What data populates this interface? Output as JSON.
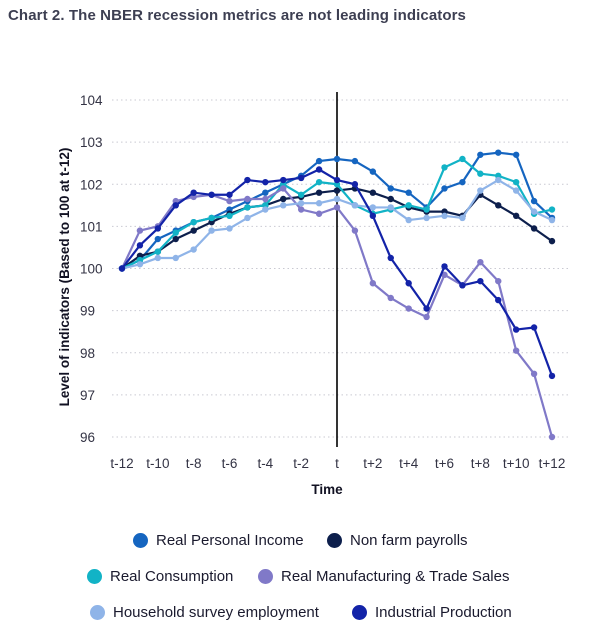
{
  "title": "Chart 2. The NBER recession metrics are not leading indicators",
  "chart_data": {
    "type": "line",
    "xlabel": "Time",
    "ylabel": "Level of indicators (Based to 100 at t-12)",
    "x": [
      -12,
      -11,
      -10,
      -9,
      -8,
      -7,
      -6,
      -5,
      -4,
      -3,
      -2,
      -1,
      0,
      1,
      2,
      3,
      4,
      5,
      6,
      7,
      8,
      9,
      10,
      11,
      12
    ],
    "x_tick_labels": [
      "t-12",
      "t-10",
      "t-8",
      "t-6",
      "t-4",
      "t-2",
      "t",
      "t+2",
      "t+4",
      "t+6",
      "t+8",
      "t+10",
      "t+12"
    ],
    "y_tick_labels": [
      "104",
      "103",
      "102",
      "101",
      "100",
      "99",
      "98",
      "97",
      "96"
    ],
    "ylim": [
      96,
      104
    ],
    "xlim": [
      -12,
      12
    ],
    "grid": "horizontal dotted",
    "reference_line_at_x": 0,
    "legend_position": "bottom",
    "series": [
      {
        "name": "Real Personal Income",
        "color": "#1565c0",
        "values": [
          100.0,
          100.2,
          100.7,
          100.9,
          101.1,
          101.2,
          101.4,
          101.6,
          101.8,
          102.0,
          102.2,
          102.55,
          102.6,
          102.55,
          102.3,
          101.9,
          101.8,
          101.45,
          101.9,
          102.05,
          102.7,
          102.75,
          102.7,
          101.6,
          101.2
        ]
      },
      {
        "name": "Non farm payrolls",
        "color": "#0d1f4c",
        "values": [
          100.0,
          100.3,
          100.4,
          100.7,
          100.9,
          101.1,
          101.3,
          101.45,
          101.5,
          101.65,
          101.7,
          101.8,
          101.85,
          101.9,
          101.8,
          101.65,
          101.45,
          101.35,
          101.35,
          101.25,
          101.75,
          101.5,
          101.25,
          100.95,
          100.65
        ]
      },
      {
        "name": "Real Consumption",
        "color": "#12b3c6",
        "values": [
          100.0,
          100.2,
          100.4,
          100.85,
          101.1,
          101.2,
          101.25,
          101.45,
          101.5,
          102.0,
          101.75,
          102.05,
          102.0,
          101.5,
          101.3,
          101.4,
          101.5,
          101.4,
          102.4,
          102.6,
          102.25,
          102.2,
          102.05,
          101.3,
          101.4
        ]
      },
      {
        "name": "Real Manufacturing & Trade Sales",
        "color": "#8079c8",
        "values": [
          100.0,
          100.9,
          101.0,
          101.6,
          101.7,
          101.75,
          101.6,
          101.65,
          101.65,
          101.9,
          101.4,
          101.3,
          101.45,
          100.9,
          99.65,
          99.3,
          99.05,
          98.85,
          99.85,
          99.6,
          100.15,
          99.7,
          98.05,
          97.5,
          96.0
        ]
      },
      {
        "name": "Household survey employment",
        "color": "#8fb4e8",
        "values": [
          100.0,
          100.1,
          100.25,
          100.25,
          100.45,
          100.9,
          100.95,
          101.2,
          101.4,
          101.5,
          101.55,
          101.55,
          101.65,
          101.5,
          101.45,
          101.45,
          101.15,
          101.2,
          101.25,
          101.2,
          101.85,
          102.1,
          101.85,
          101.35,
          101.15
        ]
      },
      {
        "name": "Industrial Production",
        "color": "#1323a8",
        "values": [
          100.0,
          100.55,
          100.95,
          101.5,
          101.8,
          101.75,
          101.75,
          102.1,
          102.05,
          102.1,
          102.15,
          102.35,
          102.1,
          102.0,
          101.25,
          100.25,
          99.65,
          99.05,
          100.05,
          99.6,
          99.7,
          99.25,
          98.55,
          98.6,
          97.45
        ]
      }
    ]
  }
}
